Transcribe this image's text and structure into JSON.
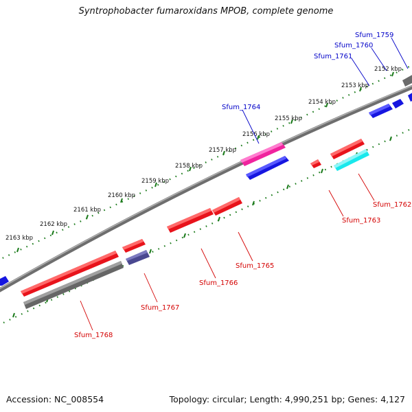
{
  "title": "Syntrophobacter fumaroxidans MPOB, complete genome",
  "footer": {
    "accession": "Accession: NC_008554",
    "summary": "Topology: circular; Length: 4,990,251 bp; Genes: 4,127"
  },
  "colors": {
    "backbone": "#8a8a8a",
    "label_forward": "#0000c8",
    "label_reverse": "#d40000",
    "tick_dot": "#1a7a1a",
    "red_gene": "#e8131b",
    "blue_gene": "#1616e0",
    "gray_gene": "#6a6a6a",
    "magenta_gene": "#f0239e",
    "cyan_gene": "#19e8ec",
    "slate_gene": "#4a4890"
  },
  "ruler": {
    "unit": "kbp",
    "ticks": [
      "2152 kbp",
      "2153 kbp",
      "2154 kbp",
      "2155 kbp",
      "2156 kbp",
      "2157 kbp",
      "2158 kbp",
      "2159 kbp",
      "2160 kbp",
      "2161 kbp",
      "2162 kbp",
      "2163 kbp"
    ]
  },
  "gene_labels": {
    "forward": [
      "Sfum_1759",
      "Sfum_1760",
      "Sfum_1761",
      "Sfum_1764"
    ],
    "reverse": [
      "Sfum_1762",
      "Sfum_1763",
      "Sfum_1765",
      "Sfum_1766",
      "Sfum_1767",
      "Sfum_1768"
    ]
  }
}
